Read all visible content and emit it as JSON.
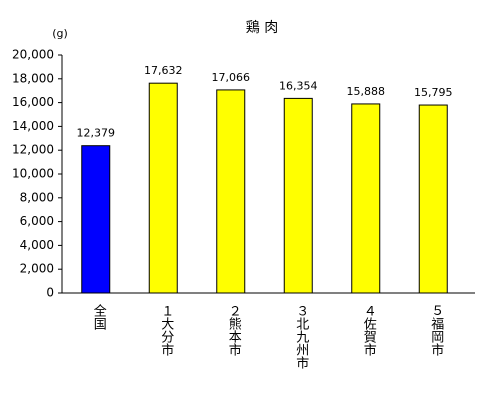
{
  "chart_data": {
    "type": "bar",
    "title": "鶏 肉",
    "y_unit": "(g)",
    "categories": [
      "全国",
      "１大分市",
      "２熊本市",
      "３北九州市",
      "４佐賀市",
      "５福岡市"
    ],
    "values": [
      12379,
      17632,
      17066,
      16354,
      15888,
      15795
    ],
    "value_labels": [
      "12,379",
      "17,632",
      "17,066",
      "16,354",
      "15,888",
      "15,795"
    ],
    "colors": [
      "#0000ff",
      "#ffff00",
      "#ffff00",
      "#ffff00",
      "#ffff00",
      "#ffff00"
    ],
    "ylim": [
      0,
      20000
    ],
    "yticks": [
      0,
      {
        "value": 2000,
        "label": "2,000"
      },
      {
        "value": 4000,
        "label": "4,000"
      },
      {
        "value": 6000,
        "label": "6,000"
      },
      {
        "value": 8000,
        "label": "8,000"
      },
      {
        "value": 10000,
        "label": "10,000"
      },
      {
        "value": 12000,
        "label": "12,000"
      },
      {
        "value": 14000,
        "label": "14,000"
      },
      {
        "value": 16000,
        "label": "16,000"
      },
      {
        "value": 18000,
        "label": "18,000"
      },
      {
        "value": 20000,
        "label": "20,000"
      }
    ],
    "grid": false
  }
}
